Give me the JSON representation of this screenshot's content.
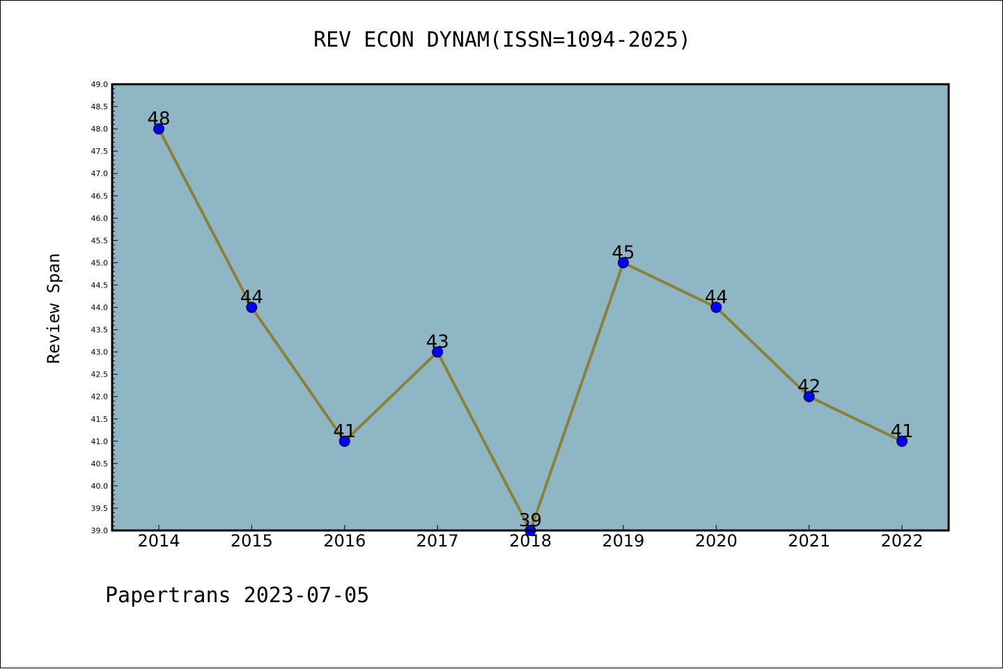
{
  "chart_data": {
    "type": "line",
    "title": "REV ECON DYNAM(ISSN=1094-2025)",
    "xlabel": "",
    "ylabel": "Review Span",
    "categories": [
      "2014",
      "2015",
      "2016",
      "2017",
      "2018",
      "2019",
      "2020",
      "2021",
      "2022"
    ],
    "series": [
      {
        "values": [
          48,
          44,
          41,
          43,
          39,
          45,
          44,
          42,
          41
        ]
      }
    ],
    "data_labels": [
      "48",
      "44",
      "41",
      "43",
      "39",
      "45",
      "44",
      "42",
      "41"
    ],
    "ylim": [
      39.0,
      49.0
    ],
    "y_ticks": [
      "39.0",
      "39.5",
      "40.0",
      "40.5",
      "41.0",
      "41.5",
      "42.0",
      "42.5",
      "43.0",
      "43.5",
      "44.0",
      "44.5",
      "45.0",
      "45.5",
      "46.0",
      "46.5",
      "47.0",
      "47.5",
      "48.0",
      "48.5",
      "49.0"
    ],
    "grid": false,
    "colors": {
      "plot_background": "#8fb6c4",
      "line": "#8b8038",
      "marker": "#0000ff"
    }
  },
  "footer": {
    "text": "Papertrans 2023-07-05"
  }
}
